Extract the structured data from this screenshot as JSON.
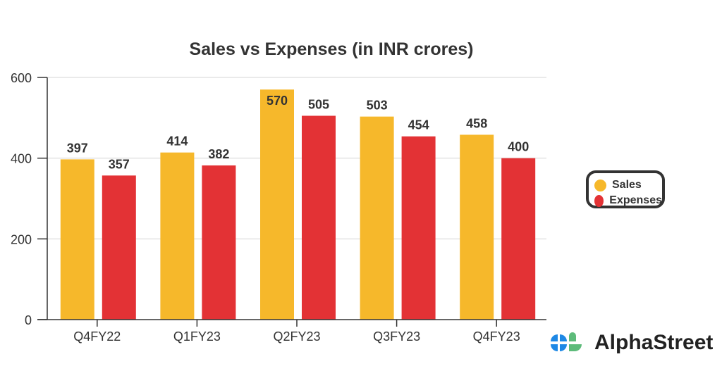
{
  "chart_data": {
    "type": "bar",
    "title": "Sales vs Expenses (in INR crores)",
    "categories": [
      "Q4FY22",
      "Q1FY23",
      "Q2FY23",
      "Q3FY23",
      "Q4FY23"
    ],
    "series": [
      {
        "name": "Sales",
        "color": "#F6B82B",
        "values": [
          397,
          414,
          570,
          503,
          458
        ]
      },
      {
        "name": "Expenses",
        "color": "#E33235",
        "values": [
          357,
          382,
          505,
          454,
          400
        ]
      }
    ],
    "yticks": [
      0,
      200,
      400,
      600
    ],
    "ylim": [
      0,
      600
    ],
    "xlabel": "",
    "ylabel": "",
    "grid": true,
    "legend_position": "right"
  },
  "brand": {
    "name": "AlphaStreet"
  }
}
